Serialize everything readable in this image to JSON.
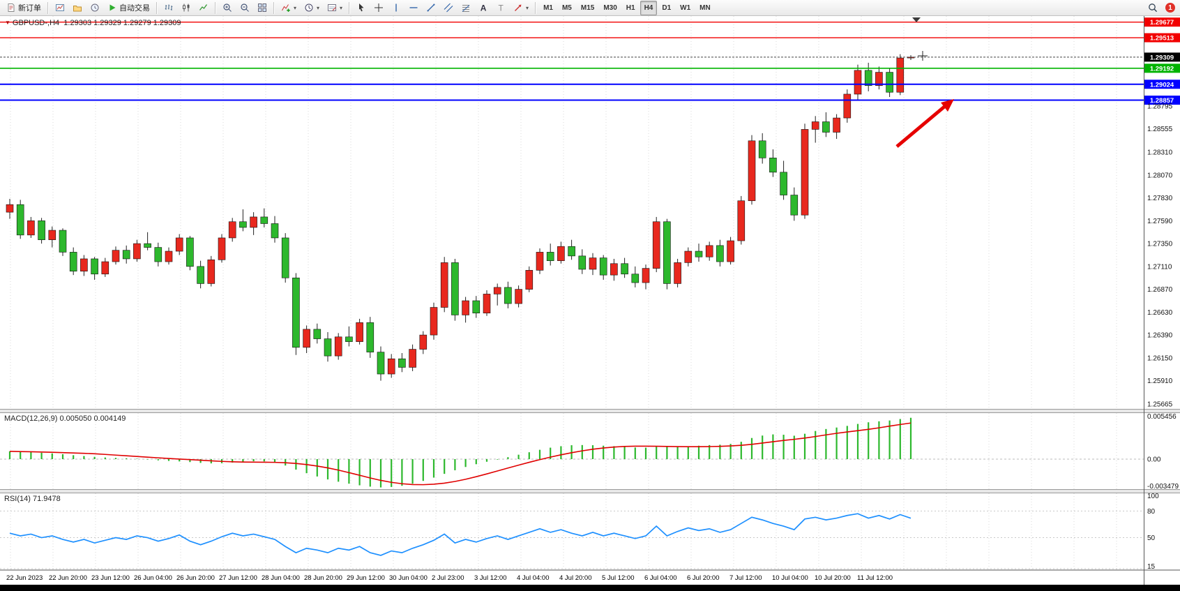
{
  "toolbar": {
    "new_order_label": "新订单",
    "autotrade_label": "自动交易",
    "timeframes": [
      "M1",
      "M5",
      "M15",
      "M30",
      "H1",
      "H4",
      "D1",
      "W1",
      "MN"
    ],
    "active_timeframe": "H4",
    "notification_count": "1"
  },
  "colors": {
    "candle_up": "#e8281e",
    "candle_down": "#2db82d",
    "candle_wick": "#222222",
    "candle_border": "#111111",
    "grid": "#d8d8d8",
    "macd_hist": "#2db82d",
    "macd_signal": "#e00000",
    "rsi": "#1e90ff",
    "bid": "#444444",
    "arrow": "#e60000"
  },
  "chart_data": {
    "type": "candlestick",
    "title_symbol": "GBPUSD-,H4",
    "title_ohlc": "1.29303 1.29329 1.29279 1.29309",
    "current": {
      "open": "1.29303",
      "high": "1.29329",
      "low": "1.29279",
      "close": "1.29309"
    },
    "ylim": [
      1.2561,
      1.2974
    ],
    "grid": "vertical-dashed",
    "bid": {
      "label": "1.29309",
      "price": 1.29309
    },
    "hlines": [
      {
        "label": "1.29677",
        "price": 1.29677,
        "color": "#f20000",
        "width": 1.4,
        "name": "resistance-line-upper"
      },
      {
        "label": "1.29513",
        "price": 1.29513,
        "color": "#f20000",
        "width": 1.4,
        "name": "resistance-line-lower"
      },
      {
        "label": "1.29192",
        "price": 1.29192,
        "color": "#00b300",
        "width": 1.6,
        "name": "support-line-green"
      },
      {
        "label": "1.29024",
        "price": 1.29024,
        "color": "#0000ff",
        "width": 2,
        "name": "support-line-blue-1"
      },
      {
        "label": "1.28857",
        "price": 1.28857,
        "color": "#0000ff",
        "width": 2,
        "name": "support-line-blue-2"
      }
    ],
    "price_ticks": [
      [
        "1.28795",
        1.28795
      ],
      [
        "1.28555",
        1.28555
      ],
      [
        "1.28310",
        1.2831
      ],
      [
        "1.28070",
        1.2807
      ],
      [
        "1.27830",
        1.2783
      ],
      [
        "1.27590",
        1.2759
      ],
      [
        "1.27350",
        1.2735
      ],
      [
        "1.27110",
        1.2711
      ],
      [
        "1.26870",
        1.2687
      ],
      [
        "1.26630",
        1.2663
      ],
      [
        "1.26390",
        1.2639
      ],
      [
        "1.26150",
        1.2615
      ],
      [
        "1.25910",
        1.2591
      ],
      [
        "1.25665",
        1.25665
      ]
    ],
    "time_labels": [
      "22 Jun 2023",
      "22 Jun 20:00",
      "23 Jun 12:00",
      "26 Jun 04:00",
      "26 Jun 20:00",
      "27 Jun 12:00",
      "28 Jun 04:00",
      "28 Jun 20:00",
      "29 Jun 12:00",
      "30 Jun 04:00",
      "2 Jul 23:00",
      "3 Jul 12:00",
      "4 Jul 04:00",
      "4 Jul 20:00",
      "5 Jul 12:00",
      "6 Jul 04:00",
      "6 Jul 20:00",
      "7 Jul 12:00",
      "10 Jul 04:00",
      "10 Jul 20:00",
      "11 Jul 12:00"
    ],
    "candles_ohlc": [
      [
        1.2768,
        1.2782,
        1.2761,
        1.2776
      ],
      [
        1.2776,
        1.2781,
        1.274,
        1.2744
      ],
      [
        1.2744,
        1.2763,
        1.2741,
        1.2759
      ],
      [
        1.2759,
        1.2762,
        1.2735,
        1.2739
      ],
      [
        1.2739,
        1.2753,
        1.2731,
        1.2749
      ],
      [
        1.2749,
        1.2751,
        1.2722,
        1.2726
      ],
      [
        1.2726,
        1.2731,
        1.2702,
        1.2706
      ],
      [
        1.2706,
        1.2723,
        1.2701,
        1.2719
      ],
      [
        1.2719,
        1.2721,
        1.2697,
        1.2703
      ],
      [
        1.2703,
        1.272,
        1.27,
        1.2716
      ],
      [
        1.2716,
        1.2732,
        1.2713,
        1.2728
      ],
      [
        1.2728,
        1.2733,
        1.2714,
        1.2719
      ],
      [
        1.2719,
        1.2739,
        1.2716,
        1.2735
      ],
      [
        1.2735,
        1.2747,
        1.2728,
        1.2731
      ],
      [
        1.2731,
        1.2736,
        1.2711,
        1.2716
      ],
      [
        1.2716,
        1.2731,
        1.2713,
        1.2727
      ],
      [
        1.2727,
        1.2745,
        1.2723,
        1.2741
      ],
      [
        1.2741,
        1.2743,
        1.2707,
        1.2711
      ],
      [
        1.2711,
        1.2717,
        1.2688,
        1.2693
      ],
      [
        1.2693,
        1.2722,
        1.269,
        1.2718
      ],
      [
        1.2718,
        1.2745,
        1.2715,
        1.2741
      ],
      [
        1.2741,
        1.2762,
        1.2737,
        1.2758
      ],
      [
        1.2758,
        1.2771,
        1.2748,
        1.2752
      ],
      [
        1.2752,
        1.2768,
        1.2744,
        1.2763
      ],
      [
        1.2763,
        1.2772,
        1.2752,
        1.2756
      ],
      [
        1.2756,
        1.2764,
        1.2736,
        1.2741
      ],
      [
        1.2741,
        1.2746,
        1.2694,
        1.2699
      ],
      [
        1.2699,
        1.2704,
        1.2618,
        1.2626
      ],
      [
        1.2626,
        1.2649,
        1.262,
        1.2645
      ],
      [
        1.2645,
        1.2651,
        1.263,
        1.2635
      ],
      [
        1.2635,
        1.2642,
        1.2611,
        1.2617
      ],
      [
        1.2617,
        1.2641,
        1.2613,
        1.2637
      ],
      [
        1.2637,
        1.2648,
        1.2627,
        1.2632
      ],
      [
        1.2632,
        1.2656,
        1.2629,
        1.2652
      ],
      [
        1.2652,
        1.2658,
        1.2615,
        1.2621
      ],
      [
        1.2621,
        1.2627,
        1.2591,
        1.2598
      ],
      [
        1.2598,
        1.2619,
        1.2594,
        1.2614
      ],
      [
        1.2614,
        1.262,
        1.26,
        1.2605
      ],
      [
        1.2605,
        1.2629,
        1.2601,
        1.2624
      ],
      [
        1.2624,
        1.2643,
        1.2619,
        1.2639
      ],
      [
        1.2639,
        1.2673,
        1.2634,
        1.2668
      ],
      [
        1.2668,
        1.2721,
        1.2663,
        1.2715
      ],
      [
        1.2715,
        1.2719,
        1.2654,
        1.266
      ],
      [
        1.266,
        1.2679,
        1.2652,
        1.2675
      ],
      [
        1.2675,
        1.268,
        1.2657,
        1.2662
      ],
      [
        1.2662,
        1.2686,
        1.2659,
        1.2682
      ],
      [
        1.2682,
        1.2693,
        1.267,
        1.2689
      ],
      [
        1.2689,
        1.2695,
        1.2667,
        1.2672
      ],
      [
        1.2672,
        1.2691,
        1.2668,
        1.2687
      ],
      [
        1.2687,
        1.2711,
        1.2684,
        1.2707
      ],
      [
        1.2707,
        1.273,
        1.2703,
        1.2726
      ],
      [
        1.2726,
        1.2735,
        1.2712,
        1.2717
      ],
      [
        1.2717,
        1.2737,
        1.2714,
        1.2732
      ],
      [
        1.2732,
        1.2739,
        1.2718,
        1.2722
      ],
      [
        1.2722,
        1.2729,
        1.2703,
        1.2708
      ],
      [
        1.2708,
        1.2725,
        1.2702,
        1.272
      ],
      [
        1.272,
        1.2723,
        1.2697,
        1.2702
      ],
      [
        1.2702,
        1.2719,
        1.2696,
        1.2714
      ],
      [
        1.2714,
        1.272,
        1.2699,
        1.2703
      ],
      [
        1.2703,
        1.2711,
        1.2689,
        1.2694
      ],
      [
        1.2694,
        1.2713,
        1.2687,
        1.2709
      ],
      [
        1.2709,
        1.2763,
        1.2705,
        1.2758
      ],
      [
        1.2758,
        1.2761,
        1.2687,
        1.2693
      ],
      [
        1.2693,
        1.2719,
        1.2689,
        1.2715
      ],
      [
        1.2715,
        1.2731,
        1.2711,
        1.2727
      ],
      [
        1.2727,
        1.2735,
        1.2716,
        1.2721
      ],
      [
        1.2721,
        1.2737,
        1.2717,
        1.2733
      ],
      [
        1.2733,
        1.2739,
        1.2711,
        1.2716
      ],
      [
        1.2716,
        1.2742,
        1.2713,
        1.2738
      ],
      [
        1.2738,
        1.2785,
        1.2734,
        1.278
      ],
      [
        1.278,
        1.2849,
        1.2776,
        1.2843
      ],
      [
        1.2843,
        1.2851,
        1.2819,
        1.2825
      ],
      [
        1.2825,
        1.2834,
        1.2805,
        1.281
      ],
      [
        1.281,
        1.2822,
        1.2781,
        1.2786
      ],
      [
        1.2786,
        1.2794,
        1.2759,
        1.2765
      ],
      [
        1.2765,
        1.2861,
        1.2761,
        1.2855
      ],
      [
        1.2855,
        1.2869,
        1.2841,
        1.2863
      ],
      [
        1.2863,
        1.2873,
        1.2847,
        1.2852
      ],
      [
        1.2852,
        1.2871,
        1.2845,
        1.2867
      ],
      [
        1.2867,
        1.2897,
        1.2862,
        1.2892
      ],
      [
        1.2892,
        1.2923,
        1.2886,
        1.2917
      ],
      [
        1.2917,
        1.2925,
        1.2895,
        1.2901
      ],
      [
        1.2901,
        1.2921,
        1.2897,
        1.2915
      ],
      [
        1.2915,
        1.2919,
        1.2889,
        1.2894
      ],
      [
        1.2894,
        1.2934,
        1.2891,
        1.293
      ],
      [
        1.29303,
        1.29329,
        1.29279,
        1.29309
      ]
    ],
    "macd": {
      "name": "MACD(12,26,9)",
      "value_main": "0.005050",
      "value_signal": "0.004149",
      "axis": [
        [
          "0.005456",
          0.005456
        ],
        [
          "0.00",
          0
        ],
        [
          "-0.003479",
          -0.003479
        ]
      ],
      "histogram": [
        0.00095,
        0.0009,
        0.00085,
        0.00078,
        0.0007,
        0.0006,
        0.00048,
        0.00038,
        0.00028,
        0.0002,
        0.00015,
        0.0001,
        5e-05,
        -5e-05,
        -0.00015,
        -0.00022,
        -0.00028,
        -0.00036,
        -0.00046,
        -0.00052,
        -0.0005,
        -0.00042,
        -0.00032,
        -0.00026,
        -0.00028,
        -0.00042,
        -0.00078,
        -0.00128,
        -0.00172,
        -0.00212,
        -0.00248,
        -0.00276,
        -0.003,
        -0.0032,
        -0.00336,
        -0.00346,
        -0.0034,
        -0.00326,
        -0.003,
        -0.00266,
        -0.00226,
        -0.0018,
        -0.00136,
        -0.00096,
        -0.00062,
        -0.00032,
        -6e-05,
        0.00024,
        0.00054,
        0.00084,
        0.00114,
        0.0014,
        0.00158,
        0.0017,
        0.00172,
        0.0017,
        0.00164,
        0.00158,
        0.0015,
        0.00142,
        0.0014,
        0.00152,
        0.0015,
        0.00152,
        0.00158,
        0.00164,
        0.00172,
        0.00176,
        0.00186,
        0.00212,
        0.00258,
        0.00288,
        0.00302,
        0.00298,
        0.00286,
        0.0031,
        0.00344,
        0.00368,
        0.00386,
        0.00406,
        0.0043,
        0.0045,
        0.00462,
        0.00472,
        0.0049,
        0.00505
      ]
    },
    "rsi": {
      "name": "RSI(14)",
      "value": "71.9478",
      "axis": [
        [
          "100",
          100
        ],
        [
          "80",
          80
        ],
        [
          "50",
          50
        ],
        [
          "15",
          15
        ]
      ],
      "levels": [
        80,
        50,
        15
      ],
      "values": [
        55,
        52,
        54,
        50,
        52,
        48,
        45,
        48,
        44,
        47,
        50,
        48,
        52,
        50,
        46,
        49,
        53,
        46,
        42,
        46,
        51,
        55,
        52,
        54,
        51,
        48,
        40,
        33,
        38,
        36,
        33,
        38,
        36,
        40,
        33,
        30,
        35,
        33,
        38,
        42,
        47,
        54,
        44,
        48,
        45,
        49,
        52,
        48,
        52,
        56,
        60,
        56,
        59,
        55,
        52,
        56,
        52,
        55,
        52,
        49,
        52,
        63,
        52,
        57,
        61,
        58,
        60,
        56,
        59,
        66,
        73,
        70,
        66,
        63,
        59,
        71,
        73,
        70,
        72,
        75,
        77,
        72,
        75,
        71,
        76,
        71.9
      ]
    }
  }
}
